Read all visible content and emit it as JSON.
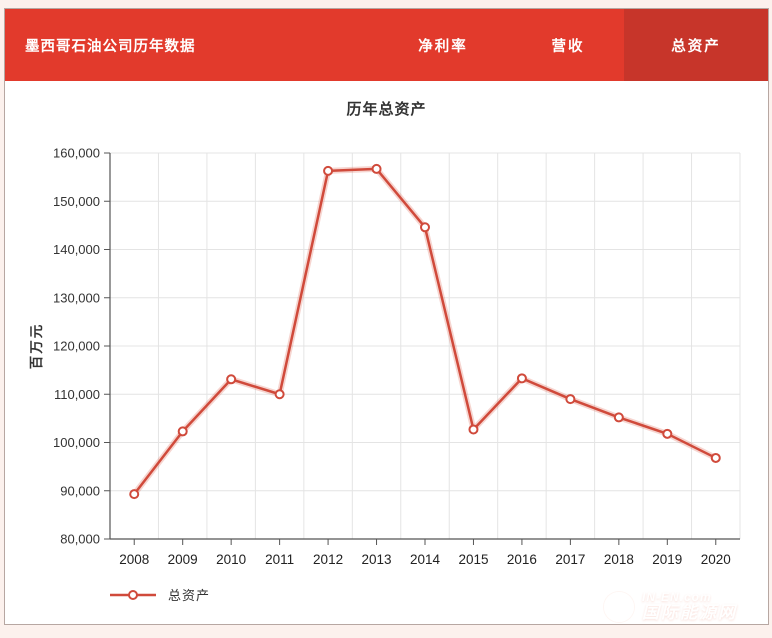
{
  "header": {
    "title": "墨西哥石油公司历年数据",
    "tabs": [
      {
        "key": "net-profit-margin",
        "label": "净利率",
        "active": false
      },
      {
        "key": "revenue",
        "label": "营收",
        "active": false
      },
      {
        "key": "total-assets",
        "label": "总资产",
        "active": true
      }
    ]
  },
  "chart_data": {
    "type": "line",
    "title": "历年总资产",
    "ylabel": "百万元",
    "categories": [
      "2008",
      "2009",
      "2010",
      "2011",
      "2012",
      "2013",
      "2014",
      "2015",
      "2016",
      "2017",
      "2018",
      "2019",
      "2020"
    ],
    "series": [
      {
        "name": "总资产",
        "color": "#d04a3b",
        "values": [
          89300,
          102300,
          113100,
          110000,
          156300,
          156700,
          144600,
          102700,
          113300,
          109000,
          105200,
          101800,
          96800
        ]
      }
    ],
    "ylim": [
      80000,
      160000
    ],
    "ytick_step": 10000,
    "grid": true,
    "legend_position": "bottom-left",
    "marker": "open-circle"
  },
  "colors": {
    "header_bg": "#e23a2c",
    "active_tab_bg": "#c7352a",
    "line": "#d04a3b",
    "grid": "#e4e4e4",
    "axis": "#555555",
    "tick_text": "#333333"
  },
  "watermark": {
    "brand": "IN-EN.com",
    "site": "国际能源网"
  }
}
